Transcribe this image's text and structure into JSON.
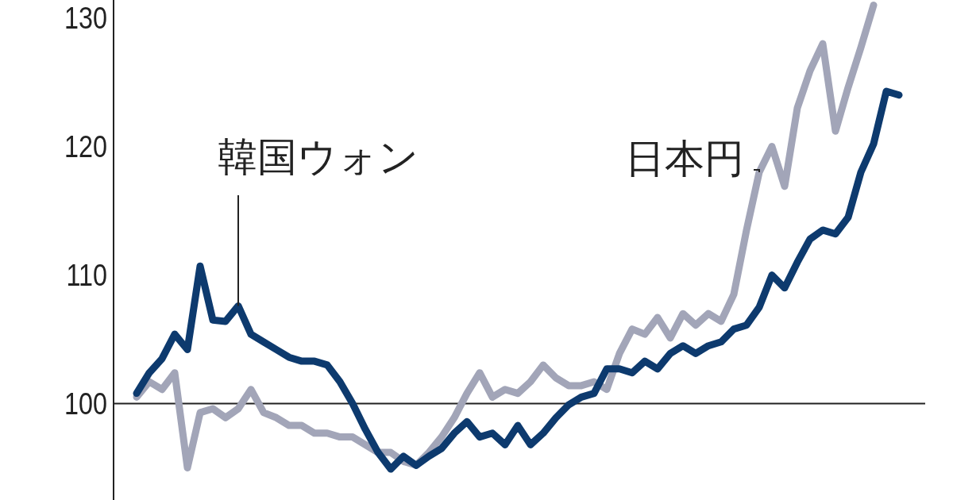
{
  "chart_data": {
    "type": "line",
    "categories": [
      null,
      null,
      null,
      null,
      null,
      null,
      null,
      null,
      null,
      null,
      null,
      null,
      null,
      null,
      null,
      null,
      null,
      null,
      null,
      null,
      null,
      null,
      null,
      null,
      null,
      null,
      null,
      null,
      null,
      null,
      null,
      null,
      null,
      null,
      null,
      null,
      null,
      null,
      null,
      null,
      null,
      null,
      null,
      null,
      null,
      null,
      null,
      null,
      null,
      null,
      null,
      null,
      null,
      null,
      null,
      null,
      null,
      null,
      null,
      null,
      null
    ],
    "ylim": [
      92.5,
      131.4
    ],
    "yticks": [
      100,
      110,
      120,
      130
    ],
    "grid": false,
    "line_style": "solid",
    "marker": "none",
    "ref_lines": [
      {
        "axis": "y",
        "value": 100
      }
    ],
    "series": [
      {
        "name": "日本円",
        "color": "#a2a5b8",
        "values": [
          100.5,
          101.7,
          101.1,
          102.4,
          95.0,
          99.3,
          99.6,
          98.9,
          99.6,
          101.1,
          99.3,
          98.9,
          98.3,
          98.3,
          97.7,
          97.7,
          97.4,
          97.4,
          96.8,
          96.2,
          96.2,
          95.5,
          95.2,
          96.2,
          97.4,
          98.9,
          100.8,
          102.4,
          100.5,
          101.1,
          100.8,
          101.7,
          103.0,
          102.0,
          101.4,
          101.4,
          101.7,
          101.1,
          103.9,
          105.8,
          105.4,
          106.7,
          105.1,
          107.0,
          106.1,
          107.0,
          106.4,
          108.5,
          113.5,
          118.0,
          120.0,
          116.9,
          123.0,
          125.9,
          128.0,
          121.2,
          124.6,
          127.7,
          131.0,
          null,
          null
        ]
      },
      {
        "name": "韓国ウォン",
        "color": "#0d3a6e",
        "values": [
          100.8,
          102.4,
          103.5,
          105.4,
          104.2,
          110.7,
          106.5,
          106.4,
          107.6,
          105.4,
          104.8,
          104.2,
          103.6,
          103.3,
          103.3,
          103.0,
          101.7,
          100.0,
          98.0,
          96.2,
          94.9,
          95.9,
          95.2,
          95.9,
          96.5,
          97.7,
          98.6,
          97.4,
          97.7,
          96.8,
          98.3,
          96.8,
          97.7,
          98.9,
          99.9,
          100.5,
          100.8,
          102.7,
          102.7,
          102.4,
          103.3,
          102.7,
          103.9,
          104.5,
          103.9,
          104.5,
          104.8,
          105.8,
          106.1,
          107.5,
          110.0,
          109.0,
          111.0,
          112.8,
          113.5,
          113.2,
          114.5,
          118.0,
          120.2,
          124.3,
          124.0
        ]
      }
    ]
  }
}
